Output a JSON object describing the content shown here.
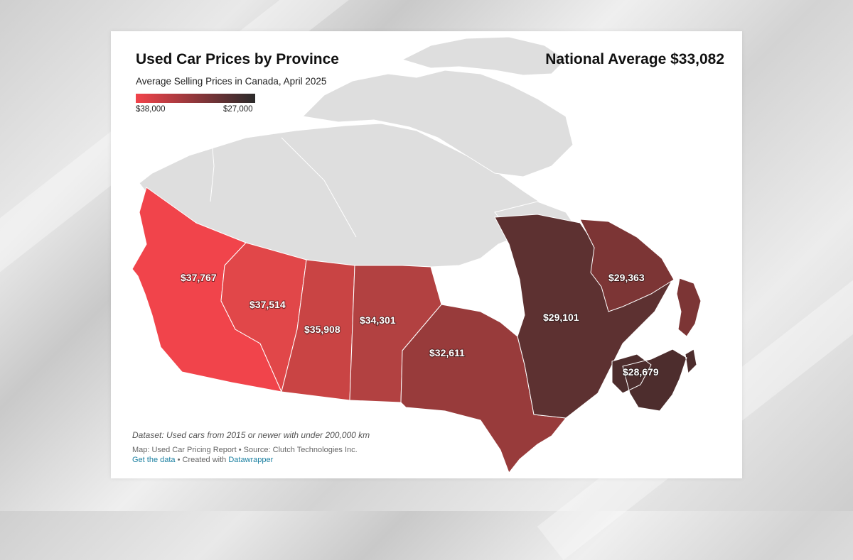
{
  "map": {
    "title": "Used Car Prices by Province",
    "subtitle": "Average Selling Prices in Canada, April 2025",
    "headline": "National Average $33,082",
    "legend": {
      "min_label": "$38,000",
      "max_label": "$27,000",
      "color_min": "#f2434b",
      "color_max": "#2b2b2b"
    },
    "regions": [
      {
        "name": "British Columbia",
        "value": 37767,
        "label": "$37,767",
        "color": "#f1444b"
      },
      {
        "name": "Alberta",
        "value": 37514,
        "label": "$37,514",
        "color": "#e14749"
      },
      {
        "name": "Saskatchewan",
        "value": 35908,
        "label": "$35,908",
        "color": "#c94444"
      },
      {
        "name": "Manitoba",
        "value": 34301,
        "label": "$34,301",
        "color": "#b24141"
      },
      {
        "name": "Ontario",
        "value": 32611,
        "label": "$32,611",
        "color": "#983b3b"
      },
      {
        "name": "Quebec",
        "value": 29101,
        "label": "$29,101",
        "color": "#5d3131"
      },
      {
        "name": "Newfoundland and Labrador",
        "value": 29363,
        "label": "$29,363",
        "color": "#7c3535"
      },
      {
        "name": "Atlantic provinces",
        "value": 28679,
        "label": "$28,679",
        "color": "#4d2d2d"
      }
    ],
    "no_data_color": "#dedede",
    "footer": {
      "note": "Dataset: Used cars from 2015 or newer with under 200,000 km",
      "source": "Map: Used Car Pricing Report • Source: Clutch Technologies Inc.",
      "get_data": "Get the data",
      "created_with": " • Created with ",
      "datawrapper": "Datawrapper"
    }
  }
}
